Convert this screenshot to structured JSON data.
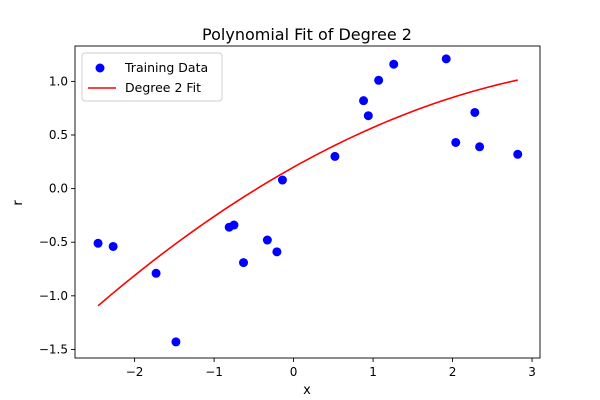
{
  "chart_data": {
    "type": "scatter",
    "title": "Polynomial Fit of Degree 2",
    "xlabel": "x",
    "ylabel": "r",
    "xlim": [
      -2.75,
      3.1
    ],
    "ylim": [
      -1.58,
      1.33
    ],
    "x_ticks": [
      -2,
      -1,
      0,
      1,
      2,
      3
    ],
    "x_tick_labels": [
      "−2",
      "−1",
      "0",
      "1",
      "2",
      "3"
    ],
    "y_ticks": [
      -1.5,
      -1.0,
      -0.5,
      0.0,
      0.5,
      1.0
    ],
    "y_tick_labels": [
      "−1.5",
      "−1.0",
      "−0.5",
      "0.0",
      "0.5",
      "1.0"
    ],
    "grid": false,
    "legend_position": "top-left",
    "series": [
      {
        "name": "Training Data",
        "kind": "scatter",
        "color": "#0000ff",
        "points": [
          [
            -2.46,
            -0.51
          ],
          [
            -2.27,
            -0.54
          ],
          [
            -1.73,
            -0.79
          ],
          [
            -1.48,
            -1.43
          ],
          [
            -0.81,
            -0.36
          ],
          [
            -0.75,
            -0.34
          ],
          [
            -0.63,
            -0.69
          ],
          [
            -0.33,
            -0.48
          ],
          [
            -0.21,
            -0.59
          ],
          [
            -0.14,
            0.08
          ],
          [
            0.52,
            0.3
          ],
          [
            0.88,
            0.82
          ],
          [
            0.94,
            0.68
          ],
          [
            1.07,
            1.01
          ],
          [
            1.26,
            1.16
          ],
          [
            1.92,
            1.21
          ],
          [
            2.04,
            0.43
          ],
          [
            2.28,
            0.71
          ],
          [
            2.34,
            0.39
          ],
          [
            2.82,
            0.32
          ]
        ]
      },
      {
        "name": "Degree 2 Fit",
        "kind": "line",
        "color": "#ff0000",
        "coefficients": [
          0.2,
          0.415,
          -0.045
        ],
        "x_range": [
          -2.46,
          2.82
        ]
      }
    ]
  }
}
